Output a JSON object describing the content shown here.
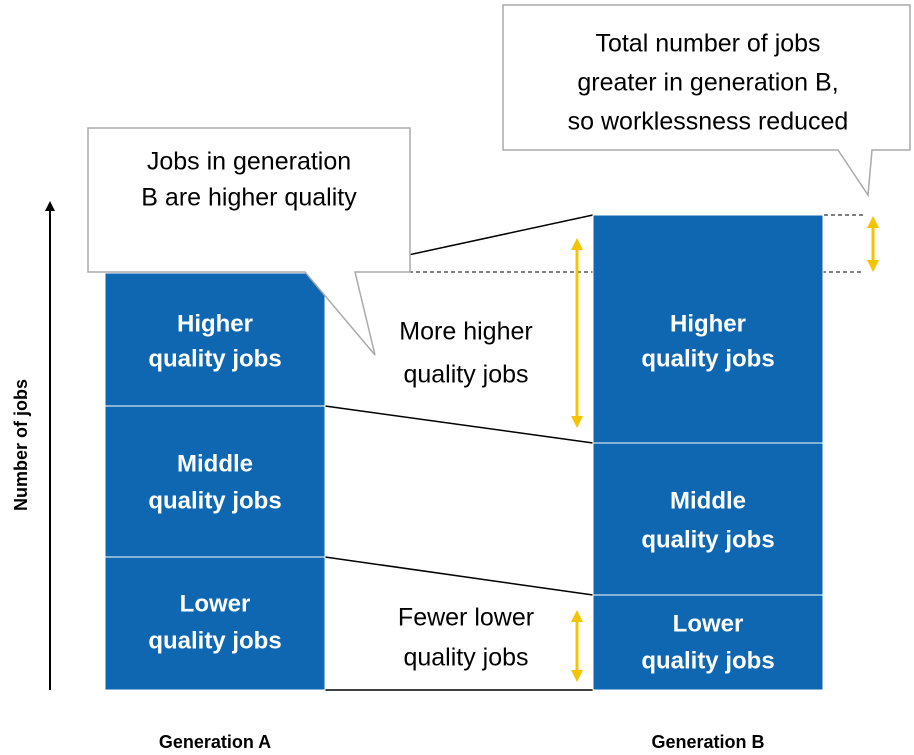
{
  "axis": {
    "label": "Number of jobs"
  },
  "columns": [
    {
      "label": "Generation A",
      "segments": [
        {
          "line1": "Higher",
          "line2": "quality jobs"
        },
        {
          "line1": "Middle",
          "line2": "quality jobs"
        },
        {
          "line1": "Lower",
          "line2": "quality jobs"
        }
      ]
    },
    {
      "label": "Generation B",
      "segments": [
        {
          "line1": "Higher",
          "line2": "quality jobs"
        },
        {
          "line1": "Middle",
          "line2": "quality jobs"
        },
        {
          "line1": "Lower",
          "line2": "quality jobs"
        }
      ]
    }
  ],
  "callouts": [
    {
      "lines": [
        "Jobs in generation",
        "B are higher quality"
      ]
    },
    {
      "lines": [
        "Total number of jobs",
        "greater in generation B,",
        "so worklessness reduced"
      ]
    }
  ],
  "annotations": [
    {
      "lines": [
        "More higher",
        "quality jobs"
      ]
    },
    {
      "lines": [
        "Fewer lower",
        "quality jobs"
      ]
    }
  ]
}
